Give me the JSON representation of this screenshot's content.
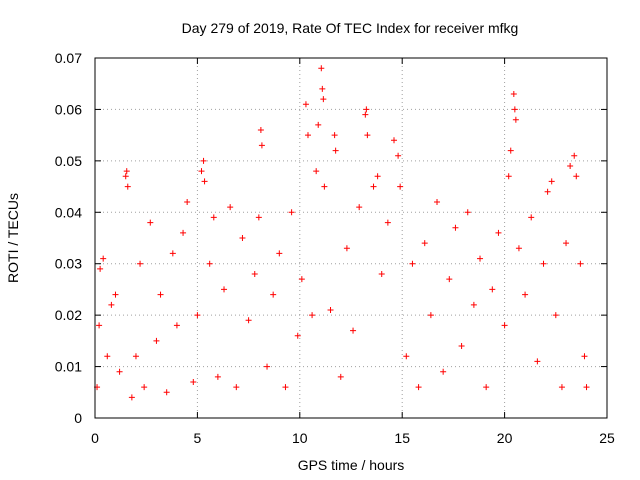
{
  "chart_data": {
    "type": "scatter",
    "title": "Day 279 of 2019, Rate Of TEC Index for receiver mfkg",
    "xlabel": "GPS time / hours",
    "ylabel": "ROTI / TECUs",
    "xlim": [
      0,
      25
    ],
    "ylim": [
      0,
      0.07
    ],
    "x_ticks": [
      "0",
      "5",
      "10",
      "15",
      "20",
      "25"
    ],
    "y_ticks": [
      "0",
      "0.01",
      "0.02",
      "0.03",
      "0.04",
      "0.05",
      "0.06",
      "0.07"
    ],
    "x_tick_values": [
      0,
      5,
      10,
      15,
      20,
      25
    ],
    "y_tick_values": [
      0,
      0.01,
      0.02,
      0.03,
      0.04,
      0.05,
      0.06,
      0.07
    ],
    "grid": true,
    "marker": "plus",
    "series": [
      {
        "name": "ROTI",
        "color": "#ff0000",
        "points": [
          [
            0.1,
            0.006
          ],
          [
            0.2,
            0.018
          ],
          [
            0.25,
            0.029
          ],
          [
            0.4,
            0.031
          ],
          [
            0.6,
            0.012
          ],
          [
            0.8,
            0.022
          ],
          [
            1.0,
            0.024
          ],
          [
            1.2,
            0.009
          ],
          [
            1.5,
            0.047
          ],
          [
            1.55,
            0.048
          ],
          [
            1.6,
            0.045
          ],
          [
            1.8,
            0.004
          ],
          [
            2.0,
            0.012
          ],
          [
            2.2,
            0.03
          ],
          [
            2.4,
            0.006
          ],
          [
            2.7,
            0.038
          ],
          [
            3.0,
            0.015
          ],
          [
            3.2,
            0.024
          ],
          [
            3.5,
            0.005
          ],
          [
            3.8,
            0.032
          ],
          [
            4.0,
            0.018
          ],
          [
            4.3,
            0.036
          ],
          [
            4.5,
            0.042
          ],
          [
            4.8,
            0.007
          ],
          [
            5.0,
            0.02
          ],
          [
            5.2,
            0.048
          ],
          [
            5.3,
            0.05
          ],
          [
            5.35,
            0.046
          ],
          [
            5.6,
            0.03
          ],
          [
            5.8,
            0.039
          ],
          [
            6.0,
            0.008
          ],
          [
            6.3,
            0.025
          ],
          [
            6.6,
            0.041
          ],
          [
            6.9,
            0.006
          ],
          [
            7.2,
            0.035
          ],
          [
            7.5,
            0.019
          ],
          [
            7.8,
            0.028
          ],
          [
            8.0,
            0.039
          ],
          [
            8.1,
            0.056
          ],
          [
            8.15,
            0.053
          ],
          [
            8.4,
            0.01
          ],
          [
            8.7,
            0.024
          ],
          [
            9.0,
            0.032
          ],
          [
            9.3,
            0.006
          ],
          [
            9.6,
            0.04
          ],
          [
            9.9,
            0.016
          ],
          [
            10.1,
            0.027
          ],
          [
            10.3,
            0.061
          ],
          [
            10.4,
            0.055
          ],
          [
            10.6,
            0.02
          ],
          [
            10.8,
            0.048
          ],
          [
            10.9,
            0.057
          ],
          [
            11.05,
            0.068
          ],
          [
            11.1,
            0.064
          ],
          [
            11.15,
            0.062
          ],
          [
            11.2,
            0.045
          ],
          [
            11.5,
            0.021
          ],
          [
            11.7,
            0.055
          ],
          [
            11.75,
            0.052
          ],
          [
            12.0,
            0.008
          ],
          [
            12.3,
            0.033
          ],
          [
            12.6,
            0.017
          ],
          [
            12.9,
            0.041
          ],
          [
            13.2,
            0.059
          ],
          [
            13.25,
            0.06
          ],
          [
            13.3,
            0.055
          ],
          [
            13.6,
            0.045
          ],
          [
            13.8,
            0.047
          ],
          [
            14.0,
            0.028
          ],
          [
            14.3,
            0.038
          ],
          [
            14.6,
            0.054
          ],
          [
            14.8,
            0.051
          ],
          [
            14.9,
            0.045
          ],
          [
            15.2,
            0.012
          ],
          [
            15.5,
            0.03
          ],
          [
            15.8,
            0.006
          ],
          [
            16.1,
            0.034
          ],
          [
            16.4,
            0.02
          ],
          [
            16.7,
            0.042
          ],
          [
            17.0,
            0.009
          ],
          [
            17.3,
            0.027
          ],
          [
            17.6,
            0.037
          ],
          [
            17.9,
            0.014
          ],
          [
            18.2,
            0.04
          ],
          [
            18.5,
            0.022
          ],
          [
            18.8,
            0.031
          ],
          [
            19.1,
            0.006
          ],
          [
            19.4,
            0.025
          ],
          [
            19.7,
            0.036
          ],
          [
            20.0,
            0.018
          ],
          [
            20.2,
            0.047
          ],
          [
            20.3,
            0.052
          ],
          [
            20.45,
            0.063
          ],
          [
            20.5,
            0.06
          ],
          [
            20.55,
            0.058
          ],
          [
            20.7,
            0.033
          ],
          [
            21.0,
            0.024
          ],
          [
            21.3,
            0.039
          ],
          [
            21.6,
            0.011
          ],
          [
            21.9,
            0.03
          ],
          [
            22.1,
            0.044
          ],
          [
            22.3,
            0.046
          ],
          [
            22.5,
            0.02
          ],
          [
            22.8,
            0.006
          ],
          [
            23.0,
            0.034
          ],
          [
            23.2,
            0.049
          ],
          [
            23.4,
            0.051
          ],
          [
            23.5,
            0.047
          ],
          [
            23.7,
            0.03
          ],
          [
            23.9,
            0.012
          ],
          [
            24.0,
            0.006
          ]
        ]
      }
    ]
  }
}
